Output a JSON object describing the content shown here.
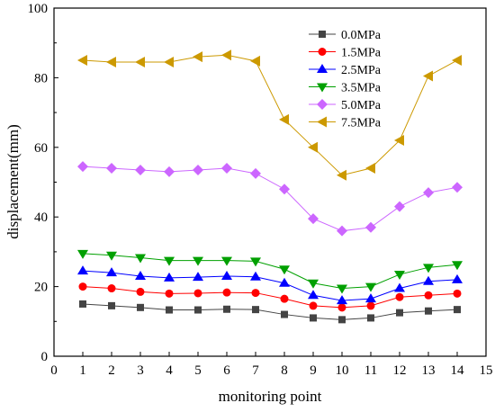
{
  "chart_data": {
    "type": "line",
    "title": "",
    "xlabel": "monitoring point",
    "ylabel": "displacement(mm)",
    "xlim": [
      0,
      15
    ],
    "ylim": [
      0,
      100
    ],
    "x_ticks": [
      0,
      1,
      2,
      3,
      4,
      5,
      6,
      7,
      8,
      9,
      10,
      11,
      12,
      13,
      14,
      15
    ],
    "y_ticks": [
      0,
      20,
      40,
      60,
      80,
      100
    ],
    "grid": false,
    "legend_position": "top-right",
    "x": [
      1,
      2,
      3,
      4,
      5,
      6,
      7,
      8,
      9,
      10,
      11,
      12,
      13,
      14
    ],
    "series": [
      {
        "name": "0.0MPa",
        "color": "#444444",
        "marker": "square",
        "values": [
          15.0,
          14.5,
          14.0,
          13.3,
          13.3,
          13.5,
          13.4,
          12.0,
          11.0,
          10.5,
          11.0,
          12.5,
          13.0,
          13.4
        ]
      },
      {
        "name": "1.5MPa",
        "color": "#ff0000",
        "marker": "circle",
        "values": [
          20.0,
          19.5,
          18.5,
          18.0,
          18.1,
          18.3,
          18.2,
          16.5,
          14.5,
          14.0,
          14.5,
          17.0,
          17.5,
          18.0
        ]
      },
      {
        "name": "2.5MPa",
        "color": "#0000ff",
        "marker": "triangle-up",
        "values": [
          24.5,
          24.0,
          23.0,
          22.5,
          22.7,
          23.0,
          22.8,
          21.0,
          17.5,
          16.0,
          16.5,
          19.5,
          21.5,
          22.0
        ]
      },
      {
        "name": "3.5MPa",
        "color": "#00a000",
        "marker": "triangle-down",
        "values": [
          29.5,
          29.0,
          28.3,
          27.5,
          27.5,
          27.5,
          27.3,
          25.0,
          21.0,
          19.5,
          20.0,
          23.5,
          25.5,
          26.3
        ]
      },
      {
        "name": "5.0MPa",
        "color": "#cc66ff",
        "marker": "diamond",
        "values": [
          54.5,
          54.0,
          53.5,
          53.0,
          53.5,
          54.0,
          52.5,
          48.0,
          39.5,
          36.0,
          37.0,
          43.0,
          47.0,
          48.5
        ]
      },
      {
        "name": "7.5MPa",
        "color": "#cc9900",
        "marker": "triangle-left",
        "values": [
          85.0,
          84.5,
          84.5,
          84.5,
          86.0,
          86.5,
          84.8,
          68.0,
          60.0,
          52.0,
          54.0,
          62.0,
          80.5,
          85.0
        ]
      }
    ]
  }
}
